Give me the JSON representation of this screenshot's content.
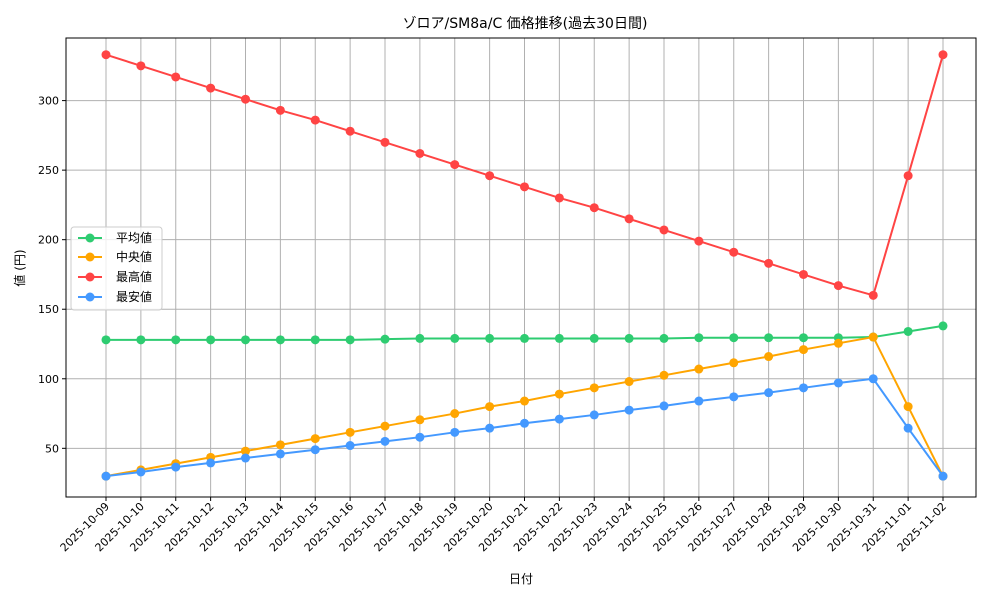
{
  "chart_data": {
    "type": "line",
    "title": "ゾロア/SM8a/C 価格推移(過去30日間)",
    "xlabel": "日付",
    "ylabel": "値 (円)",
    "ylim": [
      15,
      345
    ],
    "yticks": [
      50,
      100,
      150,
      200,
      250,
      300
    ],
    "grid": true,
    "legend_position": "center-left",
    "categories": [
      "2025-10-09",
      "2025-10-10",
      "2025-10-11",
      "2025-10-12",
      "2025-10-13",
      "2025-10-14",
      "2025-10-15",
      "2025-10-16",
      "2025-10-17",
      "2025-10-18",
      "2025-10-19",
      "2025-10-20",
      "2025-10-21",
      "2025-10-22",
      "2025-10-23",
      "2025-10-24",
      "2025-10-25",
      "2025-10-26",
      "2025-10-27",
      "2025-10-28",
      "2025-10-29",
      "2025-10-30",
      "2025-10-31",
      "2025-11-01",
      "2025-11-02"
    ],
    "series": [
      {
        "name": "平均値",
        "color": "#2ecc71",
        "values": [
          128,
          128,
          128,
          128,
          128,
          128,
          128,
          128,
          128.5,
          129,
          129,
          129,
          129,
          129,
          129,
          129,
          129,
          129.5,
          129.5,
          129.5,
          129.5,
          129.5,
          130,
          134,
          138
        ]
      },
      {
        "name": "中央値",
        "color": "#ffa500",
        "values": [
          30,
          34.5,
          39,
          43.5,
          48,
          52.5,
          57,
          61.5,
          66,
          70.5,
          75,
          80,
          84,
          89,
          93.5,
          98,
          102.5,
          107,
          111.5,
          116,
          121,
          125.5,
          130,
          80,
          30
        ]
      },
      {
        "name": "最高値",
        "color": "#ff4444",
        "values": [
          333,
          325,
          317,
          309,
          301,
          293,
          286,
          278,
          270,
          262,
          254,
          246,
          238,
          230,
          223,
          215,
          207,
          199,
          191,
          183,
          175,
          167,
          160,
          246,
          333
        ]
      },
      {
        "name": "最安値",
        "color": "#4499ff",
        "values": [
          30,
          33,
          36.5,
          39.5,
          43,
          46,
          49,
          52,
          55,
          58,
          61.5,
          64.5,
          68,
          71,
          74,
          77.5,
          80.5,
          84,
          87,
          90,
          93.5,
          97,
          100,
          64.5,
          30
        ]
      }
    ]
  }
}
